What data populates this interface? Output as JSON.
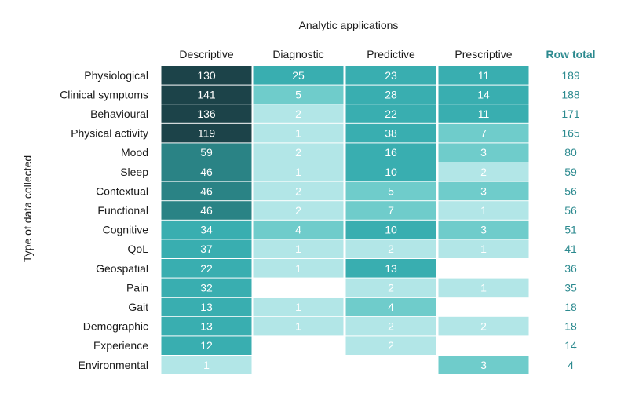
{
  "chart_data": {
    "type": "heatmap",
    "title": "Analytic applications",
    "ylabel": "Type of data collected",
    "columns": [
      "Descriptive",
      "Diagnostic",
      "Predictive",
      "Prescriptive"
    ],
    "total_label": "Row total",
    "rows": [
      {
        "label": "Physiological",
        "values": [
          130,
          25,
          23,
          11
        ],
        "total": 189
      },
      {
        "label": "Clinical symptoms",
        "values": [
          141,
          5,
          28,
          14
        ],
        "total": 188
      },
      {
        "label": "Behavioural",
        "values": [
          136,
          2,
          22,
          11
        ],
        "total": 171
      },
      {
        "label": "Physical activity",
        "values": [
          119,
          1,
          38,
          7
        ],
        "total": 165
      },
      {
        "label": "Mood",
        "values": [
          59,
          2,
          16,
          3
        ],
        "total": 80
      },
      {
        "label": "Sleep",
        "values": [
          46,
          1,
          10,
          2
        ],
        "total": 59
      },
      {
        "label": "Contextual",
        "values": [
          46,
          2,
          5,
          3
        ],
        "total": 56
      },
      {
        "label": "Functional",
        "values": [
          46,
          2,
          7,
          1
        ],
        "total": 56
      },
      {
        "label": "Cognitive",
        "values": [
          34,
          4,
          10,
          3
        ],
        "total": 51
      },
      {
        "label": "QoL",
        "values": [
          37,
          1,
          2,
          1
        ],
        "total": 41
      },
      {
        "label": "Geospatial",
        "values": [
          22,
          1,
          13,
          null
        ],
        "total": 36
      },
      {
        "label": "Pain",
        "values": [
          32,
          null,
          2,
          1
        ],
        "total": 35
      },
      {
        "label": "Gait",
        "values": [
          13,
          1,
          4,
          null
        ],
        "total": 18
      },
      {
        "label": "Demographic",
        "values": [
          13,
          1,
          2,
          2
        ],
        "total": 18
      },
      {
        "label": "Experience",
        "values": [
          12,
          null,
          2,
          null
        ],
        "total": 14
      },
      {
        "label": "Environmental",
        "values": [
          1,
          null,
          null,
          3
        ],
        "total": 4
      }
    ],
    "colors": {
      "lightest": "#b2e6e7",
      "light": "#6fcccb",
      "medium": "#39aeb0",
      "dark": "#2a8385",
      "darkest": "#1c4349",
      "total_text": "#2c8a8f"
    }
  }
}
